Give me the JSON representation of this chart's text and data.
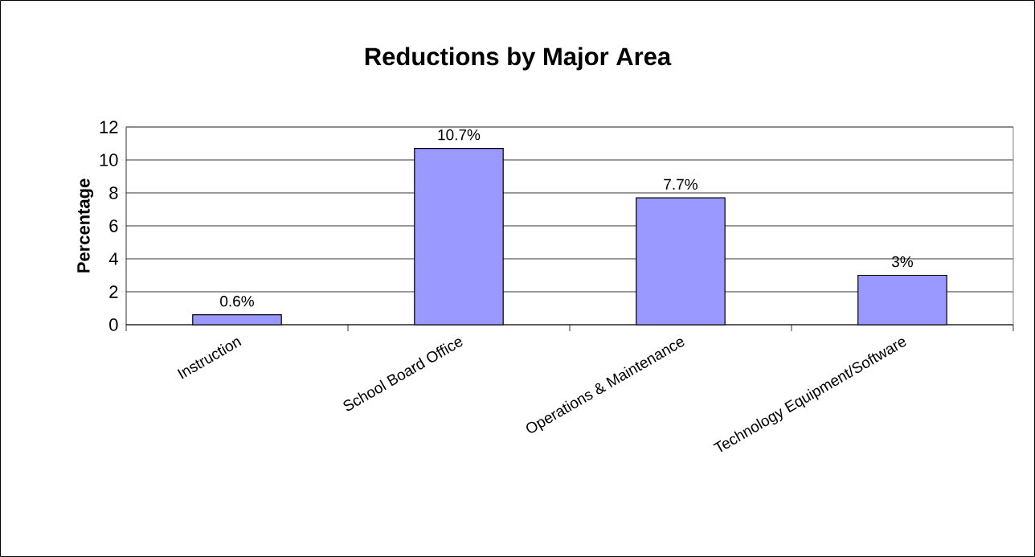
{
  "chart_data": {
    "type": "bar",
    "title": "Reductions by Major Area",
    "ylabel": "Percentage",
    "categories": [
      "Instruction",
      "School Board Office",
      "Operations & Maintenance",
      "Technology Equipment/Software"
    ],
    "values": [
      0.6,
      10.7,
      7.7,
      3
    ],
    "value_labels": [
      "0.6%",
      "10.7%",
      "7.7%",
      "3%"
    ],
    "color": "#9999ff",
    "ylim": [
      0,
      12
    ],
    "yticks": [
      0,
      2,
      4,
      6,
      8,
      10,
      12
    ],
    "grid": "y"
  }
}
